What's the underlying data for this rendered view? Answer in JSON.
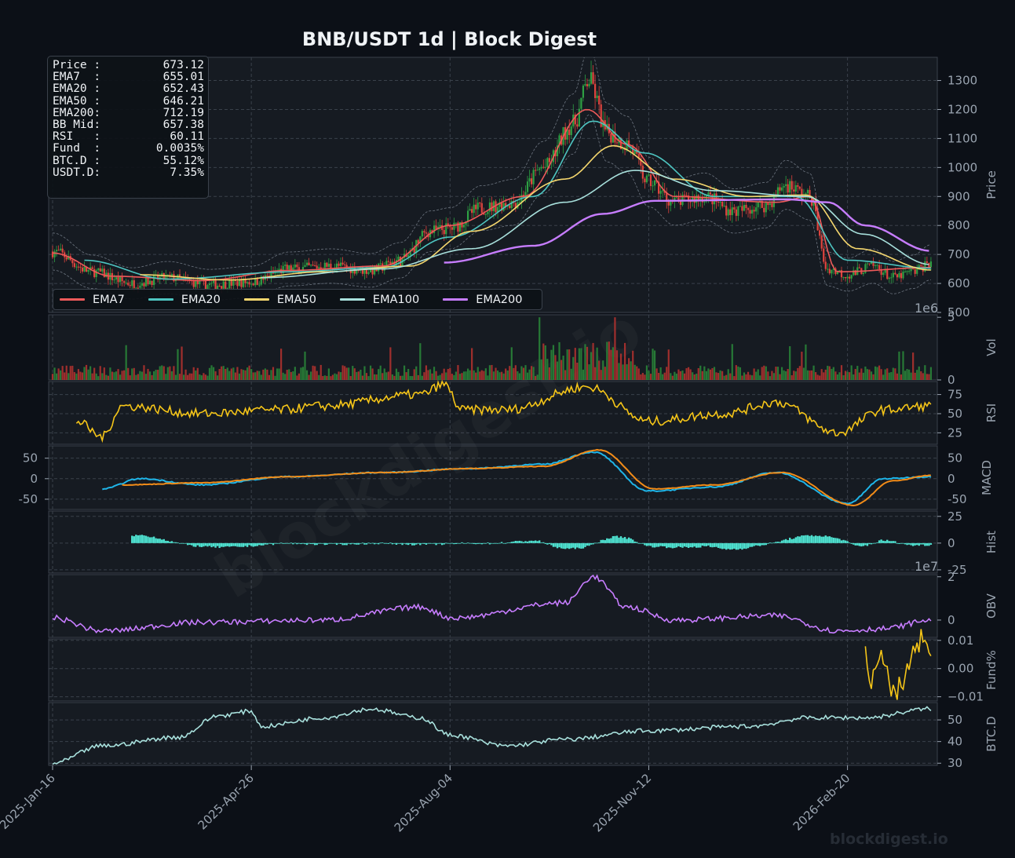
{
  "title": "BNB/USDT  1d  |  Block Digest",
  "info_box": [
    {
      "label": "Price :",
      "value": "673.12"
    },
    {
      "label": "EMA7  :",
      "value": "655.01"
    },
    {
      "label": "EMA20 :",
      "value": "652.43"
    },
    {
      "label": "EMA50 :",
      "value": "646.21"
    },
    {
      "label": "EMA200:",
      "value": "712.19"
    },
    {
      "label": "BB Mid:",
      "value": "657.38"
    },
    {
      "label": "RSI   :",
      "value": "60.11"
    },
    {
      "label": "Fund  :",
      "value": "0.0035%"
    },
    {
      "label": "BTC.D :",
      "value": "55.12%"
    },
    {
      "label": "USDT.D:",
      "value": "7.35%"
    }
  ],
  "legend": [
    {
      "name": "EMA7",
      "color": "#ef5a5a"
    },
    {
      "name": "EMA20",
      "color": "#4ec5c1"
    },
    {
      "name": "EMA50",
      "color": "#f5d76e"
    },
    {
      "name": "EMA100",
      "color": "#a8e0dc"
    },
    {
      "name": "EMA200",
      "color": "#c77dff"
    }
  ],
  "watermark": "blockdigest.io",
  "footer": "blockdigest.io",
  "vol_exponent": "1e6",
  "obv_exponent": "1e7",
  "x_ticks": [
    "2025-Jan-16",
    "2025-Apr-26",
    "2025-Aug-04",
    "2025-Nov-12",
    "2026-Feb-20"
  ],
  "colors": {
    "background": "#0c1017",
    "panel": "#161b22",
    "up": "#2ea043",
    "down": "#e0443e",
    "rsi": "#f5c518",
    "macd": "#1fb5e8",
    "signal": "#f28c18",
    "hist": "#4ee0cf",
    "obv": "#c77dff",
    "fund": "#f5c518",
    "btcd": "#a8e0dc"
  },
  "chart_data": [
    {
      "panel": "price",
      "type": "candlestick",
      "ylabel": "Price",
      "ylim": [
        500,
        1380
      ],
      "yticks": [
        500,
        600,
        700,
        800,
        900,
        1000,
        1100,
        1200,
        1300
      ],
      "x_range": [
        "2025-01-16",
        "2026-04-03"
      ],
      "close": [
        [
          "2025-01-16",
          710
        ],
        [
          "2025-02-05",
          640
        ],
        [
          "2025-02-25",
          600
        ],
        [
          "2025-03-15",
          620
        ],
        [
          "2025-04-05",
          595
        ],
        [
          "2025-04-26",
          605
        ],
        [
          "2025-05-15",
          650
        ],
        [
          "2025-06-05",
          660
        ],
        [
          "2025-06-25",
          645
        ],
        [
          "2025-07-10",
          680
        ],
        [
          "2025-07-25",
          780
        ],
        [
          "2025-08-04",
          790
        ],
        [
          "2025-08-20",
          860
        ],
        [
          "2025-09-05",
          880
        ],
        [
          "2025-09-20",
          1000
        ],
        [
          "2025-10-05",
          1150
        ],
        [
          "2025-10-13",
          1300
        ],
        [
          "2025-10-22",
          1120
        ],
        [
          "2025-11-01",
          1080
        ],
        [
          "2025-11-12",
          950
        ],
        [
          "2025-11-25",
          880
        ],
        [
          "2025-12-10",
          900
        ],
        [
          "2025-12-25",
          850
        ],
        [
          "2026-01-10",
          870
        ],
        [
          "2026-01-20",
          940
        ],
        [
          "2026-02-01",
          900
        ],
        [
          "2026-02-10",
          650
        ],
        [
          "2026-02-20",
          630
        ],
        [
          "2026-03-05",
          660
        ],
        [
          "2026-03-15",
          620
        ],
        [
          "2026-03-25",
          640
        ],
        [
          "2026-04-03",
          673.12
        ]
      ],
      "series": [
        {
          "name": "EMA7",
          "values": [
            [
              "2025-01-16",
              705
            ],
            [
              "2025-02-15",
              625
            ],
            [
              "2025-04-01",
              610
            ],
            [
              "2025-05-15",
              645
            ],
            [
              "2025-07-01",
              660
            ],
            [
              "2025-08-04",
              800
            ],
            [
              "2025-09-10",
              900
            ],
            [
              "2025-10-12",
              1200
            ],
            [
              "2025-11-01",
              1080
            ],
            [
              "2025-11-25",
              900
            ],
            [
              "2026-01-15",
              880
            ],
            [
              "2026-02-01",
              900
            ],
            [
              "2026-02-15",
              640
            ],
            [
              "2026-04-03",
              655.01
            ]
          ]
        },
        {
          "name": "EMA20",
          "values": [
            [
              "2025-02-01",
              680
            ],
            [
              "2025-03-15",
              615
            ],
            [
              "2025-05-15",
              640
            ],
            [
              "2025-07-01",
              655
            ],
            [
              "2025-08-04",
              760
            ],
            [
              "2025-09-15",
              900
            ],
            [
              "2025-10-15",
              1160
            ],
            [
              "2025-11-10",
              1050
            ],
            [
              "2025-12-15",
              900
            ],
            [
              "2026-01-25",
              900
            ],
            [
              "2026-02-20",
              680
            ],
            [
              "2026-04-03",
              652.43
            ]
          ]
        },
        {
          "name": "EMA50",
          "values": [
            [
              "2025-03-01",
              630
            ],
            [
              "2025-04-15",
              612
            ],
            [
              "2025-06-01",
              640
            ],
            [
              "2025-07-15",
              660
            ],
            [
              "2025-08-15",
              780
            ],
            [
              "2025-10-01",
              960
            ],
            [
              "2025-10-25",
              1075
            ],
            [
              "2025-11-25",
              960
            ],
            [
              "2026-01-01",
              900
            ],
            [
              "2026-01-30",
              905
            ],
            [
              "2026-02-25",
              720
            ],
            [
              "2026-04-03",
              646.21
            ]
          ]
        },
        {
          "name": "EMA100",
          "values": [
            [
              "2025-05-01",
              620
            ],
            [
              "2025-07-01",
              650
            ],
            [
              "2025-08-15",
              720
            ],
            [
              "2025-10-01",
              880
            ],
            [
              "2025-11-05",
              990
            ],
            [
              "2025-12-15",
              920
            ],
            [
              "2026-01-30",
              900
            ],
            [
              "2026-02-28",
              770
            ],
            [
              "2026-04-03",
              665
            ]
          ]
        },
        {
          "name": "EMA200",
          "values": [
            [
              "2025-08-01",
              672
            ],
            [
              "2025-09-15",
              730
            ],
            [
              "2025-10-20",
              840
            ],
            [
              "2025-11-15",
              885
            ],
            [
              "2026-01-20",
              890
            ],
            [
              "2026-02-10",
              880
            ],
            [
              "2026-03-01",
              800
            ],
            [
              "2026-04-03",
              712.19
            ]
          ]
        }
      ]
    },
    {
      "panel": "volume",
      "type": "bar",
      "ylabel": "Vol",
      "yticks": [
        0,
        5
      ],
      "ylim": [
        0,
        5.2
      ],
      "unit_exponent": "1e6"
    },
    {
      "panel": "rsi",
      "type": "line",
      "ylabel": "RSI",
      "yticks": [
        25,
        50,
        75
      ],
      "ylim": [
        10,
        92
      ],
      "values": [
        [
          "2025-01-28",
          40
        ],
        [
          "2025-02-10",
          20
        ],
        [
          "2025-02-20",
          60
        ],
        [
          "2025-04-01",
          50
        ],
        [
          "2025-05-10",
          55
        ],
        [
          "2025-06-01",
          60
        ],
        [
          "2025-07-20",
          75
        ],
        [
          "2025-08-01",
          88
        ],
        [
          "2025-08-10",
          55
        ],
        [
          "2025-09-01",
          55
        ],
        [
          "2025-10-12",
          85
        ],
        [
          "2025-11-12",
          40
        ],
        [
          "2025-12-20",
          50
        ],
        [
          "2026-01-15",
          65
        ],
        [
          "2026-02-15",
          25
        ],
        [
          "2026-03-10",
          55
        ],
        [
          "2026-04-03",
          60.11
        ]
      ]
    },
    {
      "panel": "macd",
      "type": "line",
      "ylabel": "MACD",
      "yticks": [
        -50,
        0,
        50
      ],
      "ylim": [
        -75,
        80
      ],
      "series": [
        {
          "name": "MACD",
          "values": [
            [
              "2025-02-10",
              -25
            ],
            [
              "2025-03-01",
              0
            ],
            [
              "2025-04-01",
              -15
            ],
            [
              "2025-05-15",
              5
            ],
            [
              "2025-07-01",
              15
            ],
            [
              "2025-08-15",
              25
            ],
            [
              "2025-09-20",
              35
            ],
            [
              "2025-10-15",
              65
            ],
            [
              "2025-11-12",
              -30
            ],
            [
              "2025-12-15",
              -20
            ],
            [
              "2026-01-15",
              15
            ],
            [
              "2026-02-20",
              -60
            ],
            [
              "2026-03-10",
              0
            ],
            [
              "2026-04-03",
              5
            ]
          ]
        },
        {
          "name": "Signal",
          "values": [
            [
              "2025-02-20",
              -15
            ],
            [
              "2025-04-01",
              -10
            ],
            [
              "2025-05-15",
              5
            ],
            [
              "2025-07-01",
              15
            ],
            [
              "2025-08-15",
              25
            ],
            [
              "2025-09-20",
              30
            ],
            [
              "2025-10-18",
              70
            ],
            [
              "2025-11-15",
              -25
            ],
            [
              "2025-12-15",
              -15
            ],
            [
              "2026-01-18",
              15
            ],
            [
              "2026-02-23",
              -65
            ],
            [
              "2026-03-15",
              -5
            ],
            [
              "2026-04-03",
              8
            ]
          ]
        }
      ]
    },
    {
      "panel": "hist",
      "type": "bar",
      "ylabel": "Hist",
      "yticks": [
        -25,
        0,
        25
      ],
      "ylim": [
        -28,
        30
      ]
    },
    {
      "panel": "obv",
      "type": "line",
      "ylabel": "OBV",
      "yticks": [
        0,
        2
      ],
      "ylim": [
        -0.8,
        2.1
      ],
      "unit_exponent": "1e7",
      "values": [
        [
          "2025-01-16",
          0.1
        ],
        [
          "2025-02-10",
          -0.5
        ],
        [
          "2025-04-01",
          -0.1
        ],
        [
          "2025-06-01",
          0
        ],
        [
          "2025-07-20",
          0.6
        ],
        [
          "2025-08-05",
          0.1
        ],
        [
          "2025-10-01",
          0.8
        ],
        [
          "2025-10-15",
          2.0
        ],
        [
          "2025-11-01",
          0.6
        ],
        [
          "2025-11-25",
          0
        ],
        [
          "2026-01-15",
          0.2
        ],
        [
          "2026-02-15",
          -0.5
        ],
        [
          "2026-03-10",
          -0.4
        ],
        [
          "2026-04-03",
          0
        ]
      ]
    },
    {
      "panel": "funding",
      "type": "line",
      "ylabel": "Fund%",
      "yticks": [
        -0.01,
        0.0,
        0.01
      ],
      "ylim": [
        -0.0115,
        0.0105
      ],
      "values": [
        [
          "2026-03-01",
          0.004
        ],
        [
          "2026-03-05",
          -0.005
        ],
        [
          "2026-03-10",
          0.006
        ],
        [
          "2026-03-15",
          -0.01
        ],
        [
          "2026-03-20",
          -0.006
        ],
        [
          "2026-03-25",
          0.006
        ],
        [
          "2026-03-30",
          0.01
        ],
        [
          "2026-04-03",
          0.0035
        ]
      ]
    },
    {
      "panel": "btc_dominance",
      "type": "line",
      "ylabel": "BTC.D",
      "yticks": [
        30,
        40,
        50
      ],
      "ylim": [
        29,
        58
      ],
      "values": [
        [
          "2025-01-16",
          30
        ],
        [
          "2025-02-10",
          38
        ],
        [
          "2025-03-20",
          42
        ],
        [
          "2025-04-10",
          52
        ],
        [
          "2025-04-26",
          54
        ],
        [
          "2025-05-01",
          47
        ],
        [
          "2025-06-01",
          51
        ],
        [
          "2025-06-25",
          55
        ],
        [
          "2025-07-20",
          51
        ],
        [
          "2025-08-04",
          43
        ],
        [
          "2025-09-01",
          38
        ],
        [
          "2025-10-01",
          41
        ],
        [
          "2025-11-12",
          45
        ],
        [
          "2026-01-01",
          47
        ],
        [
          "2026-02-01",
          51
        ],
        [
          "2026-03-01",
          51
        ],
        [
          "2026-04-03",
          55.12
        ]
      ]
    }
  ]
}
